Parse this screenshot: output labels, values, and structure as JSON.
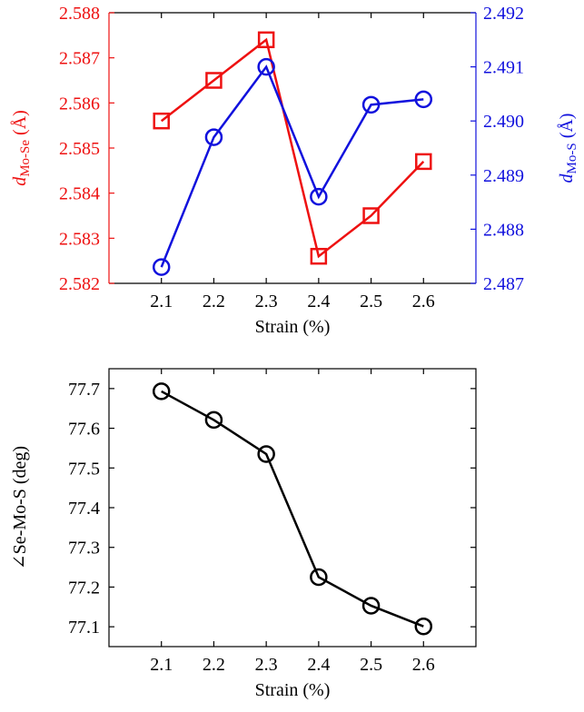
{
  "chart_data": [
    {
      "type": "line",
      "xlabel": "Strain (%)",
      "x": [
        2.1,
        2.2,
        2.3,
        2.4,
        2.5,
        2.6
      ],
      "x_ticks": [
        "2.1",
        "2.2",
        "2.3",
        "2.4",
        "2.5",
        "2.6"
      ],
      "xlim": [
        2.0,
        2.7
      ],
      "left_axis": {
        "label_prefix": "d",
        "label_subscript": "Mo-Se",
        "label_suffix": " (Å)",
        "ylim": [
          2.582,
          2.588
        ],
        "ticks": [
          "2.582",
          "2.583",
          "2.584",
          "2.585",
          "2.586",
          "2.587",
          "2.588"
        ],
        "color": "#ee1111"
      },
      "right_axis": {
        "label_prefix": "d",
        "label_subscript": "Mo-S",
        "label_suffix": " (Å)",
        "ylim": [
          2.487,
          2.492
        ],
        "ticks": [
          "2.487",
          "2.488",
          "2.489",
          "2.490",
          "2.491",
          "2.492"
        ],
        "color": "#1111dd"
      },
      "series": [
        {
          "axis": "left",
          "marker": "square",
          "color": "#ee1111",
          "values": [
            2.5856,
            2.5865,
            2.5874,
            2.5826,
            2.5835,
            2.5847
          ]
        },
        {
          "axis": "right",
          "marker": "circle",
          "color": "#1111dd",
          "values": [
            2.4873,
            2.4897,
            2.491,
            2.4886,
            2.4903,
            2.4904
          ]
        }
      ],
      "grid": false
    },
    {
      "type": "line",
      "xlabel": "Strain (%)",
      "ylabel": "∠Se-Mo-S (deg)",
      "x": [
        2.1,
        2.2,
        2.3,
        2.4,
        2.5,
        2.6
      ],
      "x_ticks": [
        "2.1",
        "2.2",
        "2.3",
        "2.4",
        "2.5",
        "2.6"
      ],
      "xlim": [
        2.0,
        2.7
      ],
      "ylim": [
        77.05,
        77.75
      ],
      "y_ticks": [
        "77.1",
        "77.2",
        "77.3",
        "77.4",
        "77.5",
        "77.6",
        "77.7"
      ],
      "series": [
        {
          "marker": "circle",
          "color": "#000000",
          "values": [
            77.693,
            77.621,
            77.535,
            77.225,
            77.153,
            77.101
          ]
        }
      ],
      "grid": false
    }
  ]
}
